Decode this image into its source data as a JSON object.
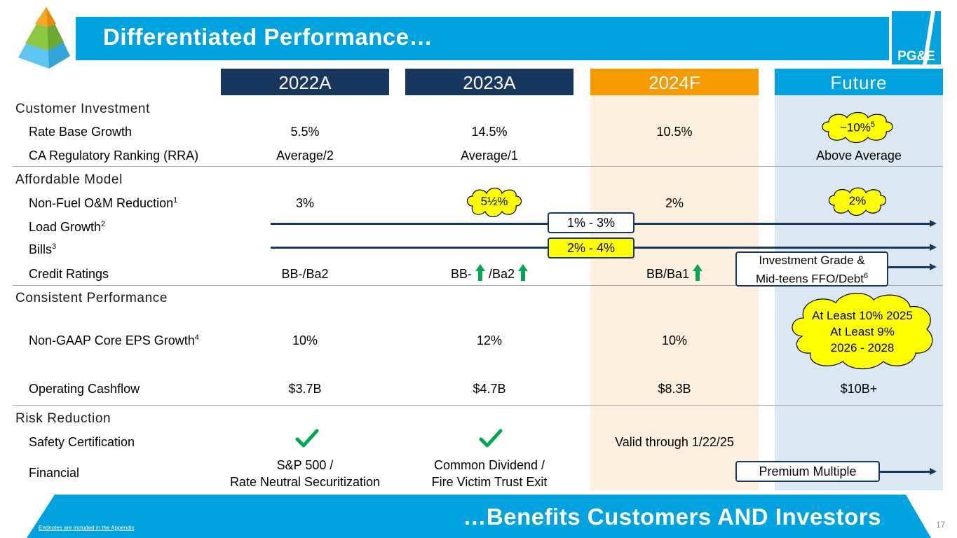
{
  "header": {
    "title": "Differentiated Performance…",
    "logo_text": "PG&E"
  },
  "columns": [
    {
      "label": "2022A",
      "color": "#17375e"
    },
    {
      "label": "2023A",
      "color": "#17375e"
    },
    {
      "label": "2024F",
      "color": "#f59b00",
      "bg": "#fdf0de"
    },
    {
      "label": "Future",
      "color": "#00a3e0",
      "bg": "#dbe7f3"
    }
  ],
  "sections": {
    "customer_investment": "Customer Investment",
    "affordable_model": "Affordable Model",
    "consistent_performance": "Consistent Performance",
    "risk_reduction": "Risk Reduction"
  },
  "rows": {
    "rate_base_growth": {
      "label": "Rate Base Growth",
      "c1": "5.5%",
      "c2": "14.5%",
      "c3": "10.5%",
      "c4": "~10%",
      "c4_sup": "5"
    },
    "ca_regulatory_ranking": {
      "label": "CA Regulatory Ranking (RRA)",
      "c1": "Average/2",
      "c2": "Average/1",
      "c4": "Above Average"
    },
    "non_fuel_om": {
      "label": "Non-Fuel O&M Reduction",
      "sup": "1",
      "c1": "3%",
      "c2": "5½%",
      "c3": "2%",
      "c4": "2%"
    },
    "load_growth": {
      "label": "Load Growth",
      "sup": "2",
      "range": "1% - 3%"
    },
    "bills": {
      "label": "Bills",
      "sup": "3",
      "range": "2% - 4%"
    },
    "credit_ratings": {
      "label": "Credit Ratings",
      "c1": "BB-/Ba2",
      "c2a": "BB-",
      "c2b": "/Ba2",
      "c3": "BB/Ba1",
      "c4_line1": "Investment Grade &",
      "c4_line2": "Mid-teens FFO/Debt",
      "c4_sup": "6"
    },
    "eps_growth": {
      "label": "Non-GAAP Core EPS Growth",
      "sup": "4",
      "c1": "10%",
      "c2": "12%",
      "c3": "10%",
      "c4_line1": "At Least 10% 2025",
      "c4_line2": "At Least 9%",
      "c4_line3": "2026 - 2028"
    },
    "operating_cashflow": {
      "label": "Operating Cashflow",
      "c1": "$3.7B",
      "c2": "$4.7B",
      "c3": "$8.3B",
      "c4": "$10B+"
    },
    "safety_certification": {
      "label": "Safety Certification",
      "c3": "Valid through 1/22/25"
    },
    "financial": {
      "label": "Financial",
      "c1_line1": "S&P 500 /",
      "c1_line2": "Rate Neutral Securitization",
      "c2_line1": "Common Dividend /",
      "c2_line2": "Fire Victim Trust Exit",
      "c4": "Premium Multiple"
    }
  },
  "footer": {
    "tagline": "…Benefits Customers AND Investors",
    "endnotes": "Endnotes are included in the Appendix",
    "page_number": "17"
  },
  "colors": {
    "title_blue": "#00a3e0",
    "navy": "#17375e",
    "orange": "#f59b00",
    "yellow": "#ffff00",
    "green": "#00a651"
  }
}
